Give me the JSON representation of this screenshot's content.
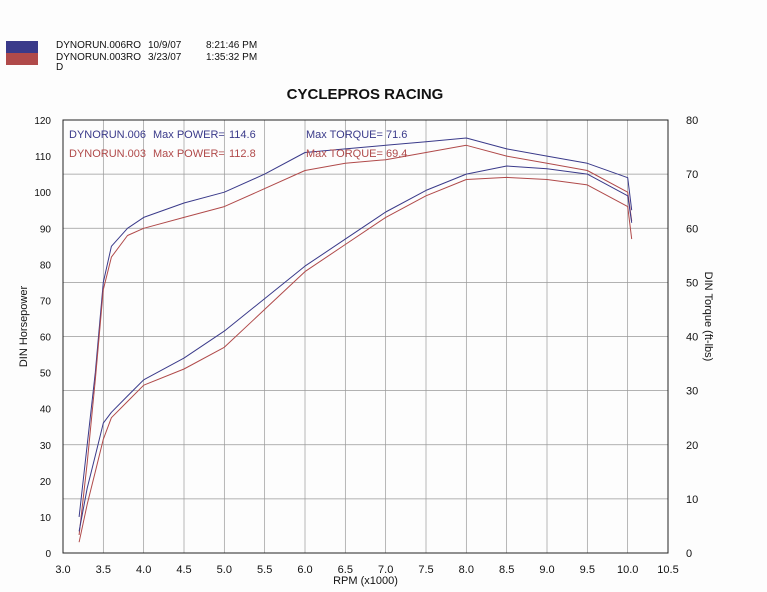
{
  "header": {
    "runs": [
      {
        "name": "DYNORUN.006RO",
        "date": "10/9/07",
        "time": "8:21:46 PM"
      },
      {
        "name": "DYNORUN.003RO",
        "date": "3/23/07",
        "time": "1:35:32 PM"
      }
    ],
    "trailing_char": "D"
  },
  "colors": {
    "run006": "#3a3a8a",
    "run003": "#b04a4a",
    "grid": "#999999",
    "frame": "#222222"
  },
  "chart_data": {
    "type": "line",
    "title": "CYCLEPROS RACING",
    "xlabel": "RPM (x1000)",
    "ylabel_left": "DIN Horsepower",
    "ylabel_right": "DIN Torque (ft-lbs)",
    "xlim": [
      3.0,
      10.5
    ],
    "ylim_left": [
      0,
      120
    ],
    "ylim_right": [
      0,
      80
    ],
    "x_ticks": [
      "3.0",
      "3.5",
      "4.0",
      "4.5",
      "5.0",
      "5.5",
      "6.0",
      "6.5",
      "7.0",
      "7.5",
      "8.0",
      "8.5",
      "9.0",
      "9.5",
      "10.0",
      "10.5"
    ],
    "y_left_ticks": [
      "0",
      "10",
      "20",
      "30",
      "40",
      "50",
      "60",
      "70",
      "80",
      "90",
      "100",
      "110",
      "120"
    ],
    "y_right_ticks": [
      "0",
      "10",
      "20",
      "30",
      "40",
      "50",
      "60",
      "70",
      "80"
    ],
    "grid": true,
    "annotations": [
      {
        "run": "DYNORUN.006",
        "power_label": "Max POWER=",
        "power": "114.6",
        "torque_label": "Max TORQUE=",
        "torque": "71.6"
      },
      {
        "run": "DYNORUN.003",
        "power_label": "Max POWER=",
        "power": "112.8",
        "torque_label": "Max TORQUE=",
        "torque": "69.4"
      }
    ],
    "series": [
      {
        "name": "DYNORUN.006",
        "kind": "power",
        "axis": "left",
        "x": [
          3.2,
          3.3,
          3.4,
          3.5,
          3.6,
          3.8,
          4.0,
          4.5,
          5.0,
          5.5,
          6.0,
          6.5,
          7.0,
          7.5,
          8.0,
          8.5,
          9.0,
          9.5,
          10.0,
          10.05
        ],
        "y": [
          10,
          30,
          50,
          75,
          85,
          90,
          93,
          97,
          100,
          105,
          111,
          112,
          113,
          114,
          115,
          112,
          110,
          108,
          104,
          95
        ]
      },
      {
        "name": "DYNORUN.003",
        "kind": "power",
        "axis": "left",
        "x": [
          3.2,
          3.3,
          3.4,
          3.5,
          3.6,
          3.8,
          4.0,
          4.5,
          5.0,
          5.5,
          6.0,
          6.5,
          7.0,
          7.5,
          8.0,
          8.5,
          9.0,
          9.5,
          10.0,
          10.05
        ],
        "y": [
          5,
          25,
          48,
          73,
          82,
          88,
          90,
          93,
          96,
          101,
          106,
          108,
          109,
          111,
          113,
          110,
          108,
          106,
          100,
          92
        ]
      },
      {
        "name": "DYNORUN.006",
        "kind": "torque",
        "axis": "right",
        "x": [
          3.2,
          3.3,
          3.4,
          3.5,
          3.6,
          3.8,
          4.0,
          4.5,
          5.0,
          5.5,
          6.0,
          6.5,
          7.0,
          7.5,
          8.0,
          8.5,
          9.0,
          9.5,
          10.0,
          10.05
        ],
        "y": [
          4,
          12,
          18,
          24,
          26,
          29,
          32,
          36,
          41,
          47,
          53,
          58,
          63,
          67,
          70,
          71.5,
          71,
          70,
          66,
          61
        ]
      },
      {
        "name": "DYNORUN.003",
        "kind": "torque",
        "axis": "right",
        "x": [
          3.2,
          3.3,
          3.4,
          3.5,
          3.6,
          3.8,
          4.0,
          4.5,
          5.0,
          5.5,
          6.0,
          6.5,
          7.0,
          7.5,
          8.0,
          8.5,
          9.0,
          9.5,
          10.0,
          10.05
        ],
        "y": [
          2,
          9,
          15,
          21,
          25,
          28,
          31,
          34,
          38,
          45,
          52,
          57,
          62,
          66,
          69,
          69.4,
          69,
          68,
          64,
          58
        ]
      }
    ]
  }
}
